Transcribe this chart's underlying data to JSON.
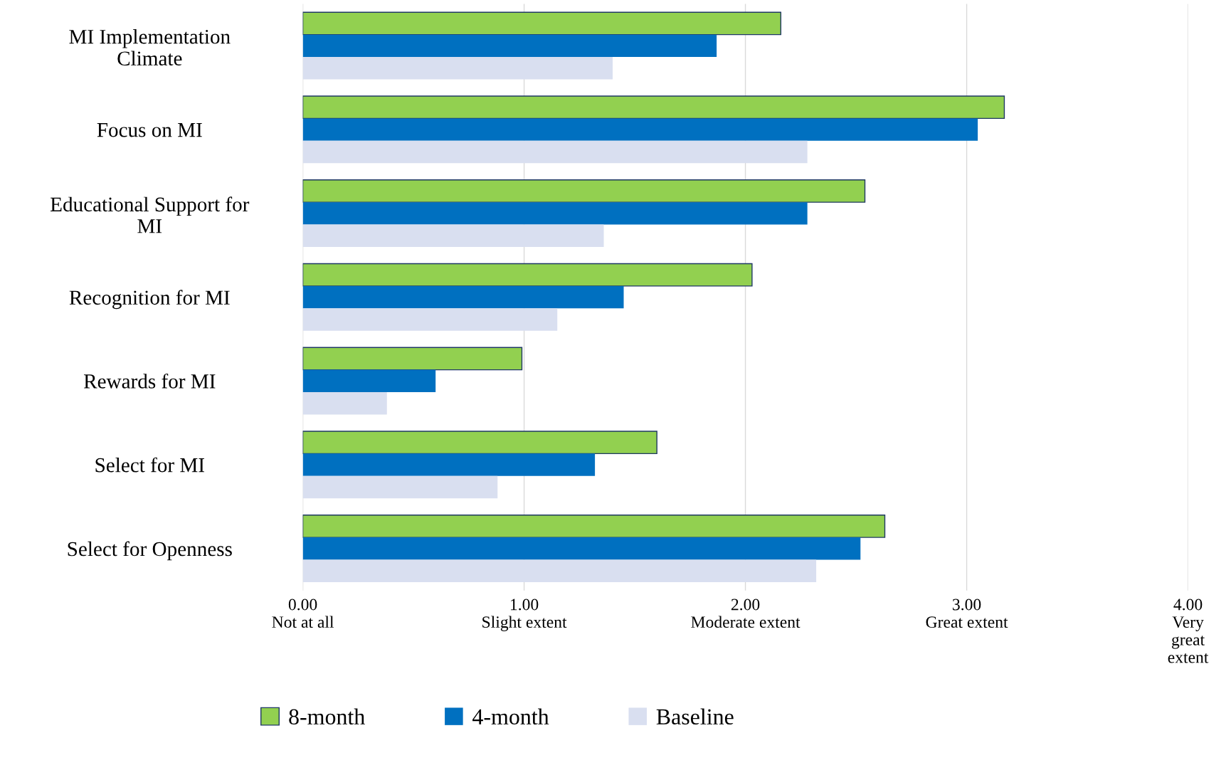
{
  "chart_data": {
    "type": "bar",
    "orientation": "horizontal",
    "categories": [
      "MI Implementation\nClimate",
      "Focus on MI",
      "Educational Support for\nMI",
      "Recognition for MI",
      "Rewards for MI",
      "Select for MI",
      "Select for Openness"
    ],
    "series": [
      {
        "name": "8-month",
        "color": "#92d050",
        "values": [
          2.16,
          3.17,
          2.54,
          2.03,
          0.99,
          1.6,
          2.63
        ]
      },
      {
        "name": "4-month",
        "color": "#0070c0",
        "values": [
          1.87,
          3.05,
          2.28,
          1.45,
          0.6,
          1.32,
          2.52
        ]
      },
      {
        "name": "Baseline",
        "color": "#d9dff0",
        "values": [
          1.4,
          2.28,
          1.36,
          1.15,
          0.38,
          0.88,
          2.32
        ]
      }
    ],
    "xlim": [
      0,
      4
    ],
    "xticks": [
      {
        "value": 0,
        "label": "0.00\nNot at all"
      },
      {
        "value": 1,
        "label": "1.00\nSlight extent"
      },
      {
        "value": 2,
        "label": "2.00\nModerate extent"
      },
      {
        "value": 3,
        "label": "3.00\nGreat extent"
      },
      {
        "value": 4,
        "label": "4.00\nVery\ngreat\nextent"
      }
    ],
    "grid": "x",
    "legend": "bottom"
  }
}
